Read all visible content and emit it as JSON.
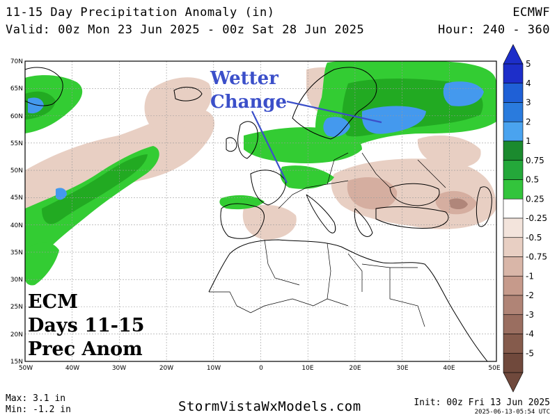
{
  "header": {
    "title": "11-15 Day Precipitation Anomaly (in)",
    "valid": "Valid: 00z Mon 23 Jun 2025 - 00z Sat 28 Jun 2025",
    "model": "ECMWF",
    "hour": "Hour: 240 - 360"
  },
  "map": {
    "lat_labels": [
      "70N",
      "65N",
      "60N",
      "55N",
      "50N",
      "45N",
      "40N",
      "35N",
      "30N",
      "25N",
      "20N",
      "15N"
    ],
    "lon_labels": [
      "50W",
      "40W",
      "30W",
      "20W",
      "10W",
      "0",
      "10E",
      "20E",
      "30E",
      "40E",
      "50E"
    ],
    "lat_range": [
      15,
      70
    ],
    "lon_range": [
      -50,
      50
    ],
    "grid": true,
    "colors": {
      "wet_light": "#33cc33",
      "wet_mid": "#22aa22",
      "wet_dark": "#148c2c",
      "wet_blue": "#4499ee",
      "dry_light": "#e8cfc3",
      "dry_mid": "#d5aea0",
      "dry_dark": "#b0867a",
      "annotation": "#3b4fc9",
      "coast": "#000000"
    }
  },
  "annotation": {
    "line1": "Wetter",
    "line2": "Change"
  },
  "overlay": {
    "line1": "ECM",
    "line2": "Days 11-15",
    "line3": "Prec Anom"
  },
  "colorbar": {
    "labels": [
      "5",
      "4",
      "3",
      "2",
      "1",
      "0.75",
      "0.5",
      "0.25",
      "-0.25",
      "-0.5",
      "-0.75",
      "-1",
      "-2",
      "-3",
      "-4",
      "-5"
    ],
    "colors": [
      "#1d2ec9",
      "#1f60d6",
      "#2a7bdd",
      "#4aa3ef",
      "#1b8a2e",
      "#24a83a",
      "#33c43c",
      "#ffffff",
      "#f3e4dc",
      "#e8cfc3",
      "#d9b6a8",
      "#c69a8b",
      "#b08476",
      "#9a6e60",
      "#855b4c",
      "#70493c"
    ]
  },
  "footer": {
    "max": "Max: 3.1 in",
    "min": "Min: -1.2 in",
    "site": "StormVistaWxModels.com",
    "init": "Init: 00z Fri 13 Jun 2025",
    "stamp": "2025-06-13-05:54 UTC"
  }
}
